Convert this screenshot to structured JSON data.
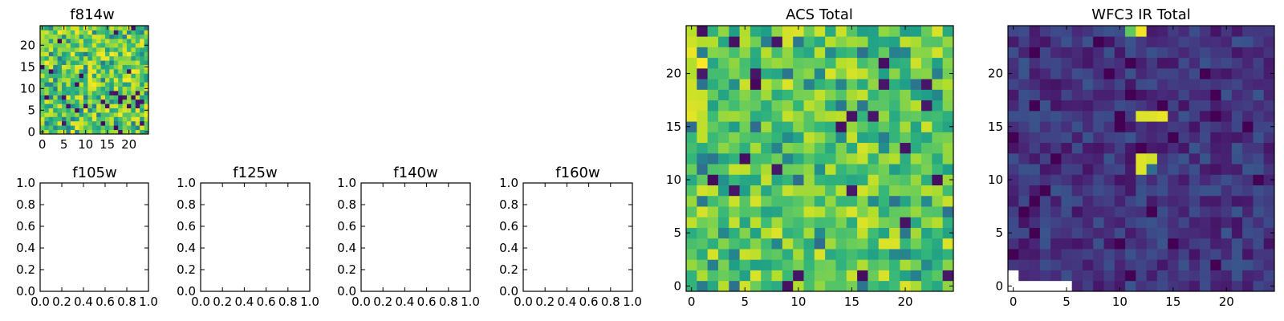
{
  "chart_data": [
    {
      "type": "heatmap",
      "title": "f814w",
      "grid": false,
      "xticks": [
        "0",
        "5",
        "10",
        "15",
        "20"
      ],
      "yticks": [
        "0",
        "5",
        "10",
        "15",
        "20"
      ],
      "xlim": [
        -0.5,
        24.5
      ],
      "ylim": [
        -0.5,
        24.5
      ],
      "size": [
        25,
        25
      ],
      "colormap": "viridis",
      "values": "25x25 pixel image; mostly green-yellow values with scattered dark purple pixels"
    },
    {
      "type": "heatmap",
      "title": "f105w",
      "grid": false,
      "empty": true,
      "xticks": [
        "0.0",
        "0.2",
        "0.4",
        "0.6",
        "0.8",
        "1.0"
      ],
      "yticks": [
        "0.0",
        "0.2",
        "0.4",
        "0.6",
        "0.8",
        "1.0"
      ],
      "xlim": [
        0,
        1
      ],
      "ylim": [
        0,
        1
      ]
    },
    {
      "type": "heatmap",
      "title": "f125w",
      "grid": false,
      "empty": true,
      "xticks": [
        "0.0",
        "0.2",
        "0.4",
        "0.6",
        "0.8",
        "1.0"
      ],
      "yticks": [
        "0.0",
        "0.2",
        "0.4",
        "0.6",
        "0.8",
        "1.0"
      ],
      "xlim": [
        0,
        1
      ],
      "ylim": [
        0,
        1
      ]
    },
    {
      "type": "heatmap",
      "title": "f140w",
      "grid": false,
      "empty": true,
      "xticks": [
        "0.0",
        "0.2",
        "0.4",
        "0.6",
        "0.8",
        "1.0"
      ],
      "yticks": [
        "0.0",
        "0.2",
        "0.4",
        "0.6",
        "0.8",
        "1.0"
      ],
      "xlim": [
        0,
        1
      ],
      "ylim": [
        0,
        1
      ]
    },
    {
      "type": "heatmap",
      "title": "f160w",
      "grid": false,
      "empty": true,
      "xticks": [
        "0.0",
        "0.2",
        "0.4",
        "0.6",
        "0.8",
        "1.0"
      ],
      "yticks": [
        "0.0",
        "0.2",
        "0.4",
        "0.6",
        "0.8",
        "1.0"
      ],
      "xlim": [
        0,
        1
      ],
      "ylim": [
        0,
        1
      ]
    },
    {
      "type": "heatmap",
      "title": "ACS Total",
      "grid": false,
      "xticks": [
        "0",
        "5",
        "10",
        "15",
        "20"
      ],
      "yticks": [
        "0",
        "5",
        "10",
        "15",
        "20"
      ],
      "xlim": [
        -0.5,
        24.5
      ],
      "ylim": [
        -0.5,
        24.5
      ],
      "size": [
        25,
        25
      ],
      "colormap": "viridis",
      "values": "25x25 pixel image; green-yellow noise, brighter yellow near left edge, scattered dark purple pixels"
    },
    {
      "type": "heatmap",
      "title": "WFC3 IR Total",
      "grid": false,
      "xticks": [
        "0",
        "5",
        "10",
        "15",
        "20"
      ],
      "yticks": [
        "0",
        "5",
        "10",
        "15",
        "20"
      ],
      "xlim": [
        -0.5,
        24.5
      ],
      "ylim": [
        -0.5,
        24.5
      ],
      "size": [
        25,
        25
      ],
      "colormap": "viridis",
      "values": "25x25 pixel image; dark purple/blue background with bright yellow patches near x=12-14, y=15-17 and x=12-13, y=11-12; blank (no data) region in lower-left corner"
    }
  ],
  "colors": {
    "viridis": [
      "#440154",
      "#482878",
      "#3e4989",
      "#31688e",
      "#26828e",
      "#1f9e89",
      "#35b779",
      "#6ece58",
      "#b5de2b",
      "#fde725"
    ]
  }
}
